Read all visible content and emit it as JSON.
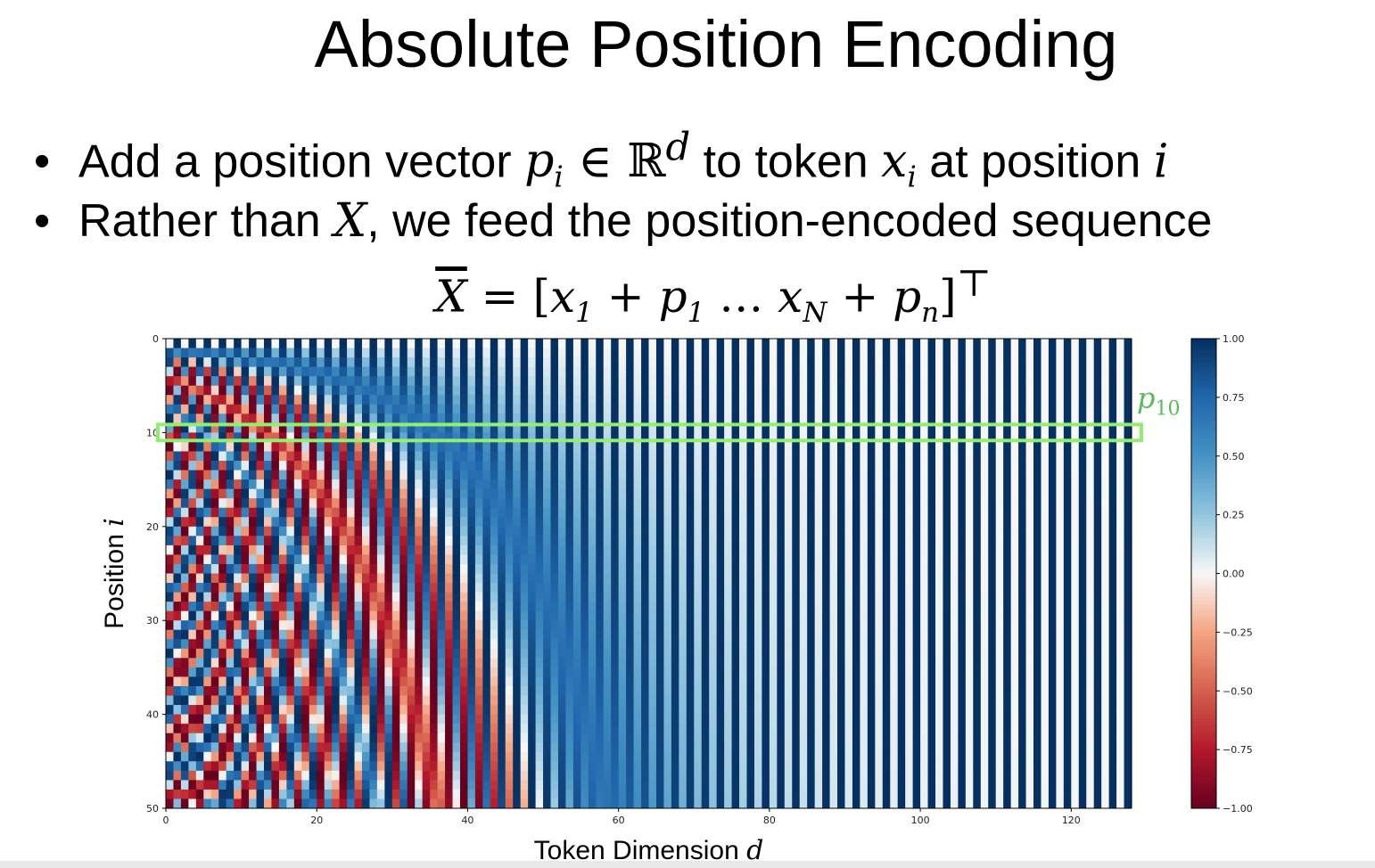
{
  "slide": {
    "title": "Absolute Position Encoding",
    "bullet1": {
      "pre": "Add a position vector ",
      "p": "p",
      "p_sub": "i",
      "in": " ∈ ",
      "R": "ℝ",
      "R_sup": "d",
      "mid": " to token ",
      "x": "x",
      "x_sub": "i",
      "post": " at position ",
      "i": "i"
    },
    "bullet2": {
      "pre": "Rather than ",
      "X": "X",
      "post": ", we feed the position-encoded sequence"
    },
    "equation": {
      "lhs": "X",
      "eq": " = [",
      "x1": "x",
      "x1_sub": "1",
      "plus1": " + ",
      "p1": "p",
      "p1_sub": "1",
      "dots": " … ",
      "xN": "x",
      "xN_sub": "N",
      "plus2": " + ",
      "pn": "p",
      "pn_sub": "n",
      "close": "]",
      "T": "⊤"
    },
    "bullet_glyph": "•"
  },
  "chart_data": {
    "type": "heatmap",
    "description_of_values": "sinusoidal position encoding, value = sin/cos(i / 10000^(2k/d))",
    "d_model": 128,
    "positions": 50,
    "x_range": [
      0,
      128
    ],
    "y_range": [
      0,
      50
    ],
    "xticks": [
      0,
      20,
      40,
      60,
      80,
      100,
      120
    ],
    "yticks": [
      0,
      10,
      20,
      30,
      40,
      50
    ],
    "xlabel": "Token Dimension",
    "xlabel_var": "d",
    "ylabel": "Position",
    "ylabel_var": "i",
    "colorbar": {
      "colormap": "RdBu",
      "vmin": -1.0,
      "vmax": 1.0,
      "ticks": [
        "1.00",
        "0.75",
        "0.50",
        "0.25",
        "0.00",
        "−0.25",
        "−0.50",
        "−0.75",
        "−1.00"
      ]
    },
    "highlight": {
      "row": 10,
      "label_var": "p",
      "label_sub": "10",
      "color": "#90ee70"
    },
    "colors": {
      "red_dark": "#67001f",
      "red": "#b2182b",
      "red_light": "#f4a582",
      "white": "#f7f7f7",
      "blue_light": "#92c5de",
      "blue": "#2166ac",
      "blue_dark": "#053061"
    }
  }
}
